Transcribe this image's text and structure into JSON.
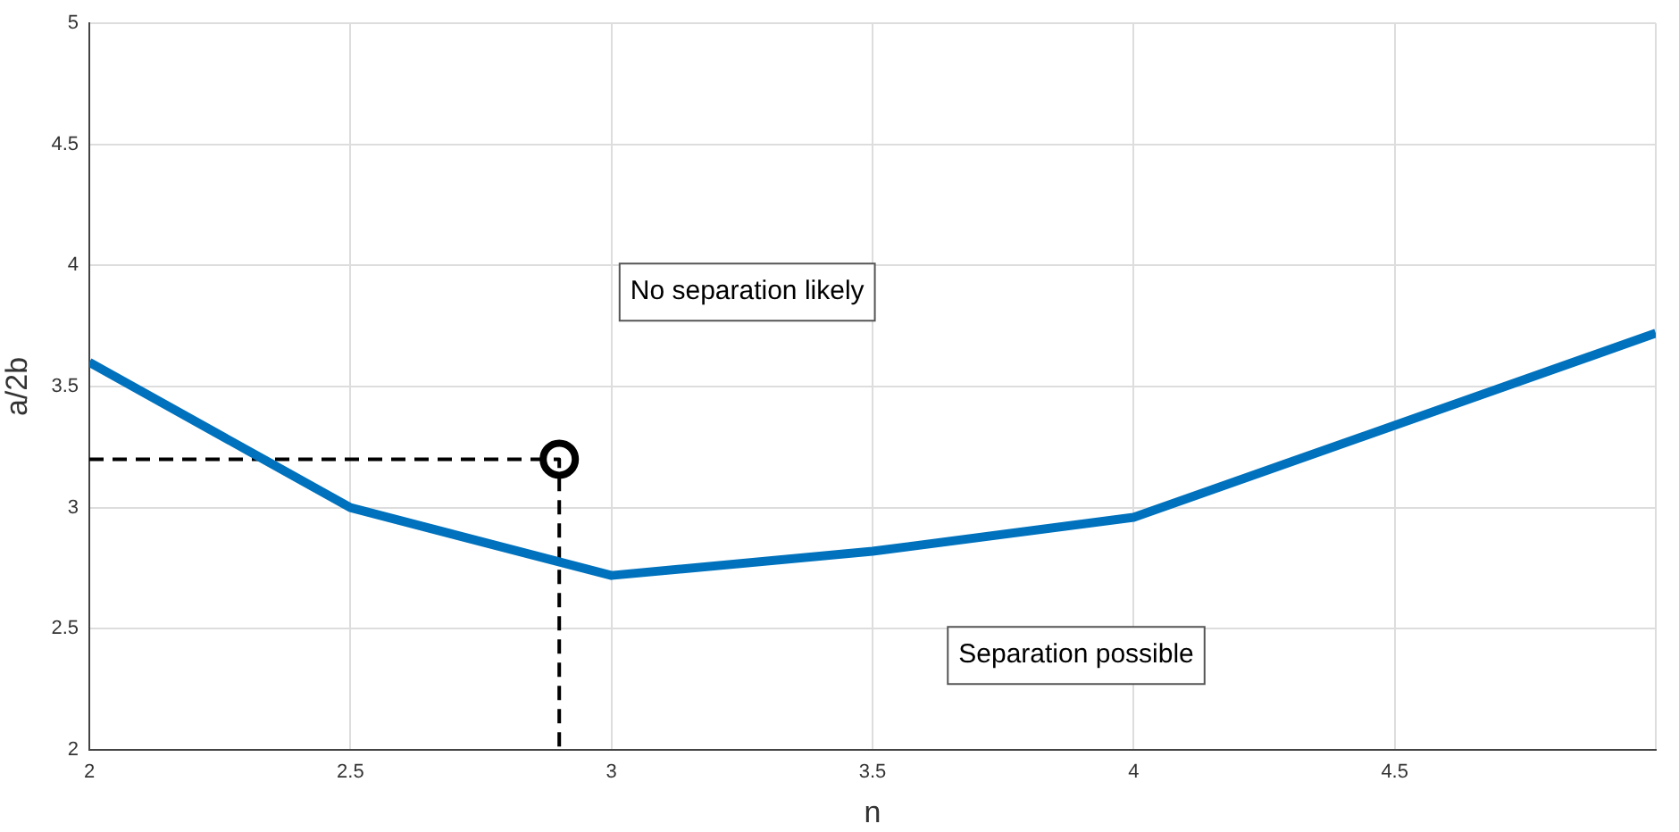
{
  "chart_data": {
    "type": "line",
    "xlabel": "n",
    "ylabel": "a/2b",
    "xlim": [
      2,
      5
    ],
    "xticks": [
      2,
      2.5,
      3,
      3.5,
      4,
      4.5,
      {
        "value": 5,
        "label": null
      }
    ],
    "ylim": [
      2,
      5
    ],
    "yticks": [
      2,
      2.5,
      3,
      3.5,
      4,
      4.5,
      5
    ],
    "grid": true,
    "series": [
      {
        "type": "line",
        "color": "#0072bd",
        "x": [
          2,
          2.5,
          3,
          3.5,
          4,
          5
        ],
        "values": [
          3.6,
          3.0,
          2.72,
          2.82,
          2.96,
          3.72
        ],
        "marker": "none",
        "line_style": "solid"
      },
      {
        "type": "line",
        "color": "#000000",
        "x": [
          2,
          2.9,
          2.9
        ],
        "values": [
          3.2,
          3.2,
          2
        ],
        "marker": "none",
        "line_style": "dashed"
      },
      {
        "type": "scatter",
        "color": "#000000",
        "x": [
          2.9
        ],
        "values": [
          3.2
        ],
        "marker": "circle"
      }
    ],
    "annotations": [
      "No separation likely",
      "Separation possible"
    ]
  }
}
